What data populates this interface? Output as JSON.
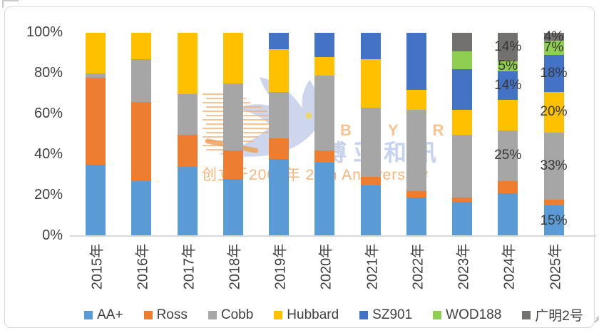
{
  "chart_data": {
    "type": "bar",
    "subtype": "stacked-100-percent",
    "grid": false,
    "legend_position": "bottom",
    "ylim": [
      0,
      100
    ],
    "y_ticks": [
      "100%",
      "80%",
      "60%",
      "40%",
      "20%",
      "0%"
    ],
    "categories": [
      "2015年",
      "2016年",
      "2017年",
      "2018年",
      "2019年",
      "2020年",
      "2021年",
      "2022年",
      "2023年",
      "2024年",
      "2025年"
    ],
    "series": [
      {
        "name": "AA+",
        "color": "#5B9BD5",
        "values": [
          35,
          27,
          34,
          28,
          38,
          36,
          25,
          19,
          17,
          21,
          15
        ]
      },
      {
        "name": "Ross",
        "color": "#ED7D31",
        "values": [
          43,
          39,
          16,
          14,
          10,
          6,
          4,
          3,
          2,
          6,
          3
        ]
      },
      {
        "name": "Cobb",
        "color": "#A6A6A6",
        "values": [
          2,
          21,
          20,
          33,
          23,
          37,
          34,
          40,
          31,
          25,
          33
        ]
      },
      {
        "name": "Hubbard",
        "color": "#FFC000",
        "values": [
          20,
          13,
          30,
          25,
          21,
          9,
          24,
          10,
          12,
          15,
          20
        ]
      },
      {
        "name": "SZ901",
        "color": "#4472C4",
        "values": [
          0,
          0,
          0,
          0,
          8,
          12,
          13,
          28,
          20,
          14,
          18
        ]
      },
      {
        "name": "WOD188",
        "color": "#8FCE52",
        "values": [
          0,
          0,
          0,
          0,
          0,
          0,
          0,
          0,
          9,
          5,
          7
        ]
      },
      {
        "name": "广明2号",
        "color": "#737070",
        "values": [
          0,
          0,
          0,
          0,
          0,
          0,
          0,
          0,
          9,
          14,
          4
        ]
      }
    ],
    "data_labels": [
      {
        "category": "2024年",
        "series": "广明2号",
        "text": "14%"
      },
      {
        "category": "2024年",
        "series": "WOD188",
        "text": "5%"
      },
      {
        "category": "2024年",
        "series": "SZ901",
        "text": "14%"
      },
      {
        "category": "2024年",
        "series": "Cobb",
        "text": "25%"
      },
      {
        "category": "2025年",
        "series": "广明2号",
        "text": "4%"
      },
      {
        "category": "2025年",
        "series": "WOD188",
        "text": "7%"
      },
      {
        "category": "2025年",
        "series": "SZ901",
        "text": "18%"
      },
      {
        "category": "2025年",
        "series": "Hubbard",
        "text": "20%"
      },
      {
        "category": "2025年",
        "series": "Cobb",
        "text": "33%"
      },
      {
        "category": "2025年",
        "series": "AA+",
        "text": "15%"
      }
    ]
  },
  "watermark": {
    "brand_latin": "BOYAR",
    "brand_cn": "博亚和讯",
    "tagline": "创立于2005年 20th Anniversary"
  },
  "colors": {
    "axis_text": "#3F3F3F",
    "frame_border": "#D9D9D9",
    "axis_line": "#D9D9D9",
    "watermark_bird": "#CDD6EC",
    "watermark_eye": "#E9D86E",
    "watermark_latin": "#F6C493",
    "watermark_cn": "#C7D3EE",
    "watermark_tagline": "#F5B67E",
    "watermark_lines": "#F5AD72"
  }
}
